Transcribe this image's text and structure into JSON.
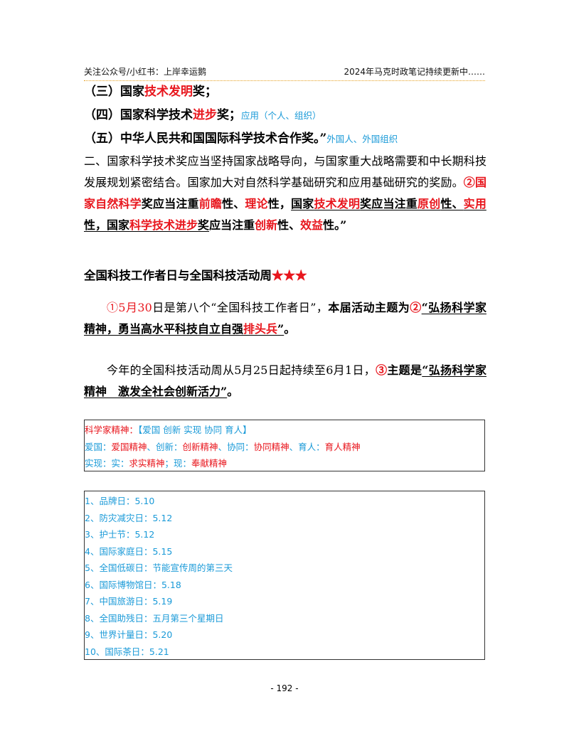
{
  "header": {
    "left": "关注公众号/小红书：上岸幸运鹅",
    "right": "2024年马克时政笔记持续更新中……"
  },
  "awards": [
    {
      "a": "（三）国家",
      "b": "技术发明",
      "c": "奖；",
      "note": ""
    },
    {
      "a": "（四）国家科学技术",
      "b": "进步",
      "c": "奖；",
      "note": "应用（个人、组织）"
    },
    {
      "a": "（五）中华人民共和国国际科学技术合作奖。”",
      "b": "",
      "c": "",
      "note": "外国人、外国组织"
    }
  ],
  "para2": {
    "t1": "二、国家科学技术奖应当坚持国家战略导向，与国家重大战略需要和中长期科技发展规划紧密结合。国家加大对自然科学基础研究和应用基础研究的奖励。",
    "s1": "②国家",
    "s2": "自然科学",
    "s3": "奖应当注重",
    "s4": "前瞻",
    "s5": "性、",
    "s6": "理论",
    "s7": "性，",
    "s8": "国家",
    "s9": "技术发明",
    "s10": "奖应当注重",
    "s11": "原创",
    "s12": "性、",
    "s13": "实用",
    "s14": "性，",
    "s15": "国家",
    "s16": "科学技术进步",
    "s17": "奖",
    "s18": "应当注重",
    "s19": "创新",
    "s20": "性、",
    "s21": "效益",
    "s22": "性。”"
  },
  "section": {
    "title": "全国科技工作者日与全国科技活动周",
    "stars": "★★★"
  },
  "para3": {
    "n1": "①5月30",
    "t1": "日是第八个“全国科技工作者日”，",
    "t2": "本届活动主题为",
    "n2": "②",
    "t3": "“弘扬科学家精神，勇当高水平科技自立自强",
    "t4": "排头兵",
    "t5": "”",
    "t6": "。"
  },
  "para4": {
    "t1": "今年的全国科技活动周从5月25日起持续至6月1日，",
    "n1": "③",
    "t2": "主题是",
    "t3": "“弘扬科学家精神　激发全社会创新活力”",
    "t4": "。"
  },
  "box1": {
    "r1a": "科学家精神：",
    "r1b": "【爱国 创新 实现 协同 育人】",
    "r2": [
      {
        "t": "爱国：",
        "c": "blue"
      },
      {
        "t": "爱国精神",
        "c": "red"
      },
      {
        "t": "、创新：",
        "c": "blue"
      },
      {
        "t": "创新精神",
        "c": "red"
      },
      {
        "t": "、协同：",
        "c": "blue"
      },
      {
        "t": "协同精神",
        "c": "red"
      },
      {
        "t": "、育人：",
        "c": "blue"
      },
      {
        "t": "育人精神",
        "c": "red"
      }
    ],
    "r3": [
      {
        "t": "实现：实：",
        "c": "blue"
      },
      {
        "t": "求实精神",
        "c": "red"
      },
      {
        "t": "；现：",
        "c": "blue"
      },
      {
        "t": "奉献精神",
        "c": "red"
      }
    ]
  },
  "days": [
    "1、品牌日：5.10",
    "2、防灾减灾日：5.12",
    "3、护士节：5.12",
    "4、国际家庭日：5.15",
    "5、全国低碳日：节能宣传周的第三天",
    "6、国际博物馆日：5.18",
    "7、中国旅游日：5.19",
    "8、全国助残日：五月第三个星期日",
    "9、世界计量日：5.20",
    "10、国际茶日：5.21"
  ],
  "footer": {
    "page": "- 192 -"
  }
}
